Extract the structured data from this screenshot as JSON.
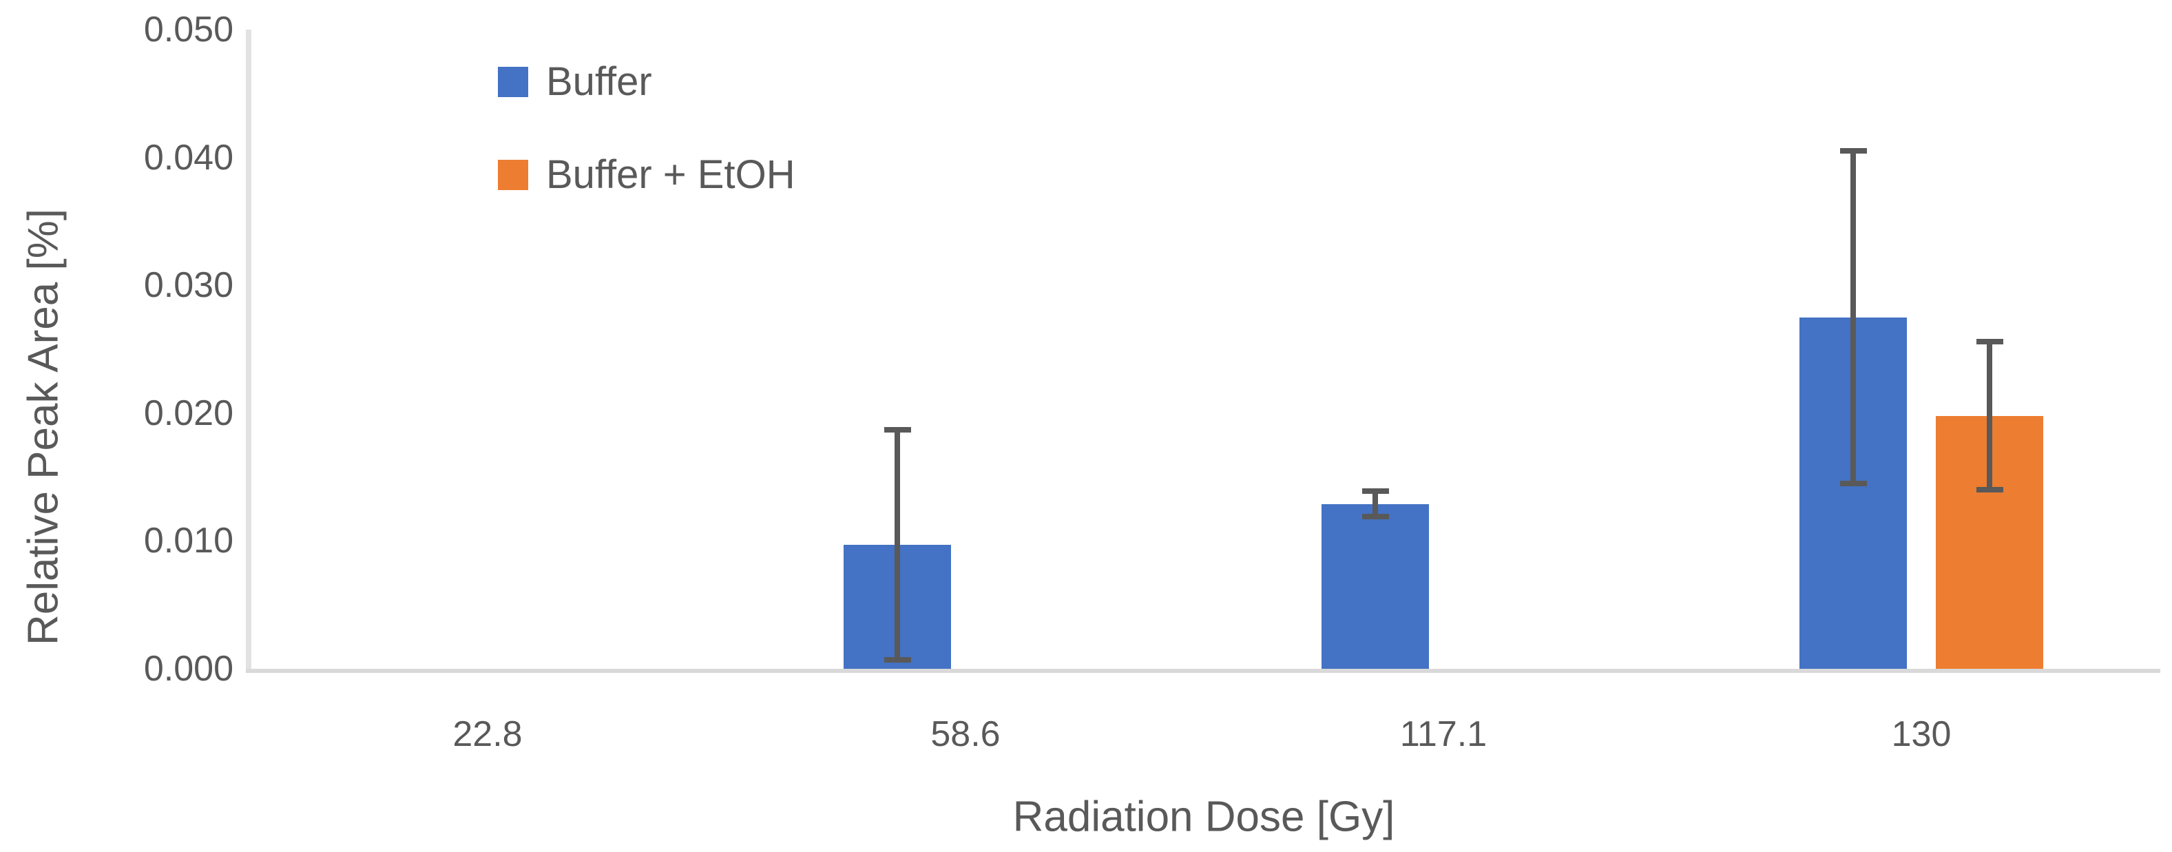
{
  "chart_data": {
    "type": "bar",
    "title": "",
    "xlabel": "Radiation Dose [Gy]",
    "ylabel": "Relative Peak Area [%]",
    "categories": [
      "22.8",
      "58.6",
      "117.1",
      "130"
    ],
    "series": [
      {
        "name": "Buffer",
        "color": "#4472C4",
        "values": [
          null,
          0.0097,
          0.0129,
          0.0275
        ],
        "errors": [
          null,
          0.009,
          0.001,
          0.013
        ]
      },
      {
        "name": "Buffer + EtOH",
        "color": "#ED7D31",
        "values": [
          null,
          null,
          null,
          0.0198
        ],
        "errors": [
          null,
          null,
          null,
          0.0058
        ]
      }
    ],
    "ylim": [
      0,
      0.05
    ],
    "y_ticks": [
      "0.000",
      "0.010",
      "0.020",
      "0.030",
      "0.040",
      "0.050"
    ],
    "y_tick_step": 0.01,
    "grid": false,
    "legend_position": "top-left-inside",
    "error_bars": true
  },
  "colors": {
    "series_buffer": "#4472C4",
    "series_buffer_etoh": "#ED7D31",
    "error_bar": "#595959",
    "axis_line": "#D9D9D9",
    "text": "#595959",
    "background": "#FFFFFF"
  }
}
